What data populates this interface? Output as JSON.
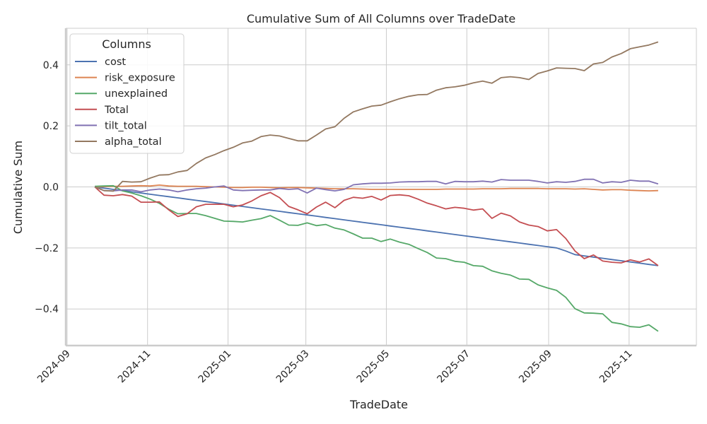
{
  "chart_data": {
    "type": "line",
    "title": "Cumulative Sum of All Columns over TradeDate",
    "xlabel": "TradeDate",
    "ylabel": "Cumulative Sum",
    "legend_title": "Columns",
    "legend_position": "top-left",
    "grid": true,
    "x_start": "2024-09-22",
    "x_step_days": 7,
    "xlim": [
      "2024-08-31",
      "2025-12-22"
    ],
    "ylim": [
      -0.52,
      0.52
    ],
    "x_ticks": [
      {
        "date": "2024-09-01",
        "label": "2024-09"
      },
      {
        "date": "2024-11-01",
        "label": "2024-11"
      },
      {
        "date": "2025-01-01",
        "label": "2025-01"
      },
      {
        "date": "2025-03-01",
        "label": "2025-03"
      },
      {
        "date": "2025-05-01",
        "label": "2025-05"
      },
      {
        "date": "2025-07-01",
        "label": "2025-07"
      },
      {
        "date": "2025-09-01",
        "label": "2025-09"
      },
      {
        "date": "2025-11-01",
        "label": "2025-11"
      }
    ],
    "y_ticks": [
      {
        "value": 0.4,
        "label": "0.4"
      },
      {
        "value": 0.2,
        "label": "0.2"
      },
      {
        "value": 0.0,
        "label": "0.0"
      },
      {
        "value": -0.2,
        "label": "−0.2"
      },
      {
        "value": -0.4,
        "label": "−0.4"
      }
    ],
    "series": [
      {
        "name": "cost",
        "color": "#4c72b0",
        "values": [
          0,
          -0.004,
          -0.008,
          -0.012,
          -0.016,
          -0.02,
          -0.024,
          -0.028,
          -0.032,
          -0.036,
          -0.04,
          -0.044,
          -0.048,
          -0.052,
          -0.056,
          -0.06,
          -0.064,
          -0.068,
          -0.072,
          -0.076,
          -0.08,
          -0.084,
          -0.088,
          -0.092,
          -0.096,
          -0.1,
          -0.104,
          -0.108,
          -0.112,
          -0.116,
          -0.12,
          -0.124,
          -0.128,
          -0.132,
          -0.136,
          -0.14,
          -0.144,
          -0.148,
          -0.152,
          -0.156,
          -0.16,
          -0.164,
          -0.168,
          -0.172,
          -0.176,
          -0.18,
          -0.184,
          -0.188,
          -0.192,
          -0.196,
          -0.2,
          -0.21,
          -0.222,
          -0.226,
          -0.23,
          -0.234,
          -0.238,
          -0.242,
          -0.246,
          -0.25,
          -0.254,
          -0.258
        ]
      },
      {
        "name": "risk_exposure",
        "color": "#dd8452",
        "values": [
          0,
          0.001,
          0.002,
          0.002,
          0.003,
          0.004,
          0.003,
          0.006,
          0.003,
          0.002,
          0.002,
          0.002,
          0.001,
          0,
          -0.001,
          -0.002,
          -0.002,
          -0.001,
          -0.001,
          -0.002,
          -0.003,
          -0.002,
          -0.002,
          -0.003,
          -0.004,
          -0.005,
          -0.006,
          -0.006,
          -0.006,
          -0.007,
          -0.008,
          -0.008,
          -0.008,
          -0.008,
          -0.008,
          -0.008,
          -0.008,
          -0.008,
          -0.007,
          -0.007,
          -0.007,
          -0.007,
          -0.006,
          -0.006,
          -0.006,
          -0.005,
          -0.005,
          -0.005,
          -0.005,
          -0.006,
          -0.006,
          -0.006,
          -0.007,
          -0.006,
          -0.008,
          -0.01,
          -0.009,
          -0.009,
          -0.011,
          -0.012,
          -0.013,
          -0.012
        ]
      },
      {
        "name": "unexplained",
        "color": "#55a868",
        "values": [
          0.002,
          0.003,
          0.004,
          -0.013,
          -0.02,
          -0.029,
          -0.04,
          -0.054,
          -0.073,
          -0.088,
          -0.087,
          -0.087,
          -0.094,
          -0.103,
          -0.112,
          -0.113,
          -0.115,
          -0.109,
          -0.104,
          -0.094,
          -0.109,
          -0.125,
          -0.126,
          -0.118,
          -0.127,
          -0.123,
          -0.135,
          -0.141,
          -0.154,
          -0.168,
          -0.168,
          -0.179,
          -0.171,
          -0.181,
          -0.188,
          -0.202,
          -0.215,
          -0.233,
          -0.235,
          -0.244,
          -0.247,
          -0.258,
          -0.26,
          -0.275,
          -0.283,
          -0.289,
          -0.302,
          -0.303,
          -0.321,
          -0.331,
          -0.339,
          -0.362,
          -0.399,
          -0.413,
          -0.414,
          -0.416,
          -0.444,
          -0.449,
          -0.458,
          -0.46,
          -0.452,
          -0.473
        ]
      },
      {
        "name": "Total",
        "color": "#c44e52",
        "values": [
          0,
          -0.027,
          -0.029,
          -0.025,
          -0.03,
          -0.05,
          -0.05,
          -0.049,
          -0.075,
          -0.097,
          -0.088,
          -0.065,
          -0.057,
          -0.057,
          -0.057,
          -0.065,
          -0.059,
          -0.046,
          -0.029,
          -0.018,
          -0.035,
          -0.064,
          -0.075,
          -0.088,
          -0.066,
          -0.05,
          -0.068,
          -0.044,
          -0.034,
          -0.037,
          -0.031,
          -0.043,
          -0.028,
          -0.026,
          -0.029,
          -0.04,
          -0.053,
          -0.062,
          -0.072,
          -0.067,
          -0.07,
          -0.076,
          -0.072,
          -0.103,
          -0.086,
          -0.095,
          -0.115,
          -0.125,
          -0.13,
          -0.144,
          -0.14,
          -0.169,
          -0.21,
          -0.235,
          -0.223,
          -0.243,
          -0.247,
          -0.249,
          -0.239,
          -0.246,
          -0.236,
          -0.258
        ]
      },
      {
        "name": "tilt_total",
        "color": "#8172b3",
        "values": [
          0,
          -0.012,
          -0.013,
          -0.01,
          -0.01,
          -0.016,
          -0.01,
          -0.007,
          -0.01,
          -0.016,
          -0.01,
          -0.006,
          -0.004,
          0,
          0.003,
          -0.01,
          -0.012,
          -0.011,
          -0.01,
          -0.01,
          -0.005,
          -0.008,
          -0.006,
          -0.02,
          -0.004,
          -0.009,
          -0.013,
          -0.008,
          0.007,
          0.01,
          0.012,
          0.012,
          0.013,
          0.016,
          0.017,
          0.017,
          0.018,
          0.018,
          0.01,
          0.018,
          0.017,
          0.017,
          0.019,
          0.016,
          0.024,
          0.022,
          0.022,
          0.022,
          0.018,
          0.013,
          0.017,
          0.015,
          0.018,
          0.025,
          0.025,
          0.013,
          0.017,
          0.015,
          0.022,
          0.019,
          0.019,
          0.01
        ]
      },
      {
        "name": "alpha_total",
        "color": "#937860",
        "values": [
          0,
          -0.012,
          -0.014,
          0.018,
          0.016,
          0.017,
          0.029,
          0.039,
          0.04,
          0.049,
          0.054,
          0.077,
          0.095,
          0.106,
          0.119,
          0.13,
          0.144,
          0.15,
          0.165,
          0.17,
          0.167,
          0.159,
          0.151,
          0.151,
          0.17,
          0.19,
          0.197,
          0.225,
          0.246,
          0.256,
          0.265,
          0.268,
          0.279,
          0.289,
          0.297,
          0.302,
          0.303,
          0.317,
          0.325,
          0.328,
          0.333,
          0.341,
          0.347,
          0.34,
          0.358,
          0.361,
          0.358,
          0.352,
          0.372,
          0.38,
          0.39,
          0.389,
          0.388,
          0.381,
          0.403,
          0.408,
          0.426,
          0.437,
          0.453,
          0.459,
          0.465,
          0.475
        ]
      }
    ]
  }
}
